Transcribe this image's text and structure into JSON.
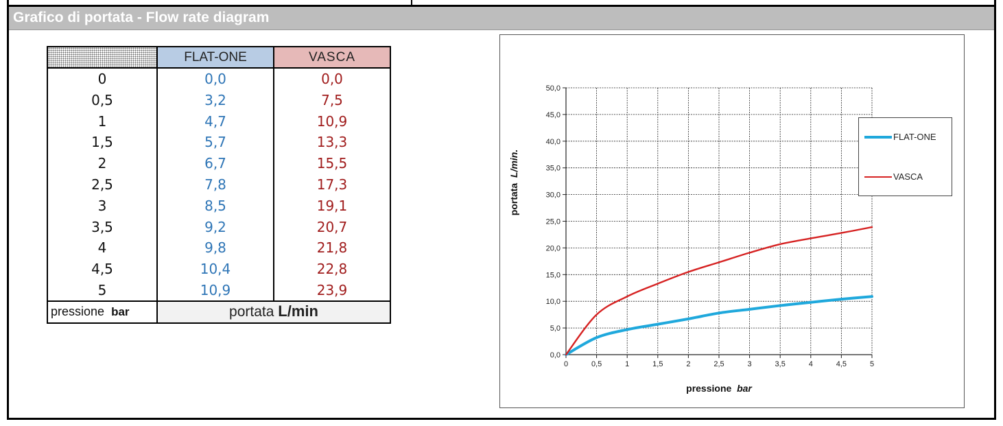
{
  "header": {
    "title": "Grafico di portata - Flow rate diagram"
  },
  "table": {
    "columns": [
      "FLAT-ONE",
      "VASCA"
    ],
    "pressure": [
      "0",
      "0,5",
      "1",
      "1,5",
      "2",
      "2,5",
      "3",
      "3,5",
      "4",
      "4,5",
      "5"
    ],
    "flat_one": [
      "0,0",
      "3,2",
      "4,7",
      "5,7",
      "6,7",
      "7,8",
      "8,5",
      "9,2",
      "9,8",
      "10,4",
      "10,9"
    ],
    "vasca": [
      "0,0",
      "7,5",
      "10,9",
      "13,3",
      "15,5",
      "17,3",
      "19,1",
      "20,7",
      "21,8",
      "22,8",
      "23,9"
    ],
    "footer_left": "pressione",
    "footer_left_unit": "bar",
    "footer_right": "portata",
    "footer_right_unit": "L/min"
  },
  "colors": {
    "flat_one": "#1fa8dc",
    "vasca": "#d62222",
    "header_bg": "#bdbdbd"
  },
  "chart_data": {
    "type": "line",
    "x": [
      0,
      0.5,
      1,
      1.5,
      2,
      2.5,
      3,
      3.5,
      4,
      4.5,
      5
    ],
    "x_ticks": [
      "0",
      "0,5",
      "1",
      "1,5",
      "2",
      "2,5",
      "3",
      "3,5",
      "4",
      "4,5",
      "5"
    ],
    "y_ticks": [
      "0,0",
      "5,0",
      "10,0",
      "15,0",
      "20,0",
      "25,0",
      "30,0",
      "35,0",
      "40,0",
      "45,0",
      "50,0"
    ],
    "series": [
      {
        "name": "FLAT-ONE",
        "values": [
          0.0,
          3.2,
          4.7,
          5.7,
          6.7,
          7.8,
          8.5,
          9.2,
          9.8,
          10.4,
          10.9
        ]
      },
      {
        "name": "VASCA",
        "values": [
          0.0,
          7.5,
          10.9,
          13.3,
          15.5,
          17.3,
          19.1,
          20.7,
          21.8,
          22.8,
          23.9
        ]
      }
    ],
    "xlabel": "pressione",
    "xlabel_unit": "bar",
    "ylabel": "portata",
    "ylabel_unit": "L/min.",
    "xlim": [
      0,
      5
    ],
    "ylim": [
      0,
      50
    ],
    "grid": true,
    "legend": "right"
  }
}
